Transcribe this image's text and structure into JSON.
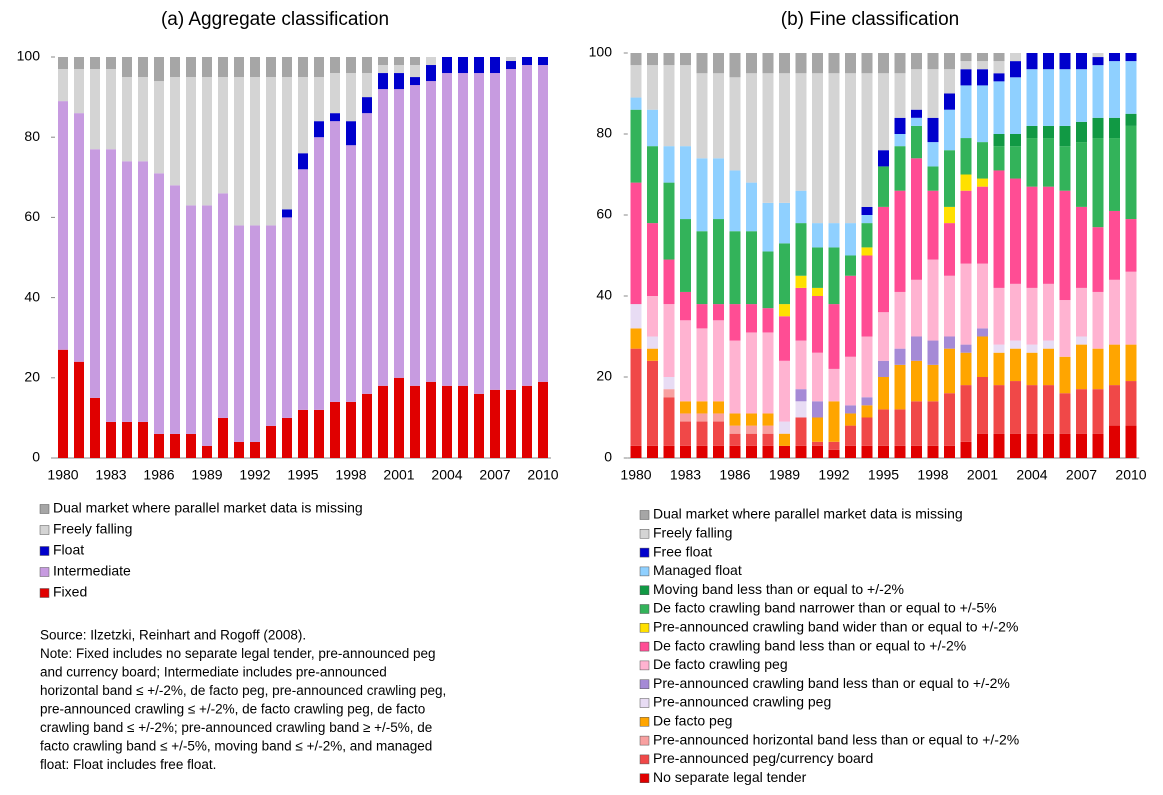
{
  "chart_data": [
    {
      "type": "stacked-bar",
      "title": "(a)  Aggregate classification",
      "categories": [
        1980,
        null,
        null,
        1983,
        null,
        null,
        1986,
        null,
        null,
        1989,
        null,
        null,
        1992,
        null,
        null,
        1995,
        null,
        null,
        1998,
        null,
        null,
        2001,
        null,
        null,
        2004,
        null,
        null,
        2007,
        null,
        null,
        2010
      ],
      "ylim": [
        0,
        100
      ],
      "yticks": [
        0,
        20,
        40,
        60,
        80,
        100
      ],
      "series": [
        {
          "name": "Fixed",
          "color": "#e00000",
          "values": [
            27,
            24,
            15,
            9,
            9,
            9,
            6,
            6,
            6,
            3,
            10,
            4,
            4,
            8,
            10,
            12,
            12,
            14,
            14,
            16,
            18,
            20,
            18,
            19,
            18,
            18,
            16,
            17,
            17,
            18,
            19
          ]
        },
        {
          "name": "Intermediate",
          "color": "#c79be0",
          "values": [
            62,
            62,
            62,
            68,
            65,
            65,
            65,
            62,
            57,
            60,
            56,
            54,
            54,
            50,
            50,
            60,
            68,
            70,
            64,
            70,
            74,
            72,
            75,
            75,
            78,
            78,
            80,
            79,
            80,
            80,
            79
          ]
        },
        {
          "name": "Float",
          "color": "#0000cc",
          "values": [
            0,
            0,
            0,
            0,
            0,
            0,
            0,
            0,
            0,
            0,
            0,
            0,
            0,
            0,
            2,
            4,
            4,
            2,
            6,
            4,
            4,
            4,
            2,
            4,
            4,
            4,
            4,
            4,
            2,
            2,
            2
          ]
        },
        {
          "name": "Freely falling",
          "color": "#d4d4d4",
          "values": [
            8,
            11,
            20,
            20,
            21,
            21,
            23,
            27,
            32,
            32,
            29,
            37,
            37,
            37,
            33,
            19,
            11,
            10,
            12,
            6,
            2,
            2,
            3,
            2,
            0,
            0,
            0,
            0,
            1,
            0,
            0
          ]
        },
        {
          "name": "Dual market where parallel market data is missing",
          "color": "#a6a6a6",
          "values": [
            3,
            3,
            3,
            3,
            5,
            5,
            6,
            5,
            5,
            5,
            5,
            5,
            5,
            5,
            5,
            5,
            5,
            4,
            4,
            4,
            2,
            2,
            2,
            0,
            0,
            0,
            0,
            0,
            0,
            0,
            0
          ]
        }
      ]
    },
    {
      "type": "stacked-bar",
      "title": "(b)  Fine classification",
      "categories": [
        1980,
        null,
        null,
        1983,
        null,
        null,
        1986,
        null,
        null,
        1989,
        null,
        null,
        1992,
        null,
        null,
        1995,
        null,
        null,
        1998,
        null,
        null,
        2001,
        null,
        null,
        2004,
        null,
        null,
        2007,
        null,
        null,
        2010
      ],
      "ylim": [
        0,
        100
      ],
      "yticks": [
        0,
        20,
        40,
        60,
        80,
        100
      ],
      "series": [
        {
          "name": "No separate legal tender",
          "color": "#e00000",
          "values": [
            3,
            3,
            3,
            3,
            3,
            3,
            3,
            3,
            3,
            3,
            3,
            3,
            2,
            3,
            3,
            3,
            3,
            3,
            3,
            3,
            4,
            6,
            6,
            6,
            6,
            6,
            6,
            6,
            6,
            8,
            8
          ]
        },
        {
          "name": "Pre-announced peg/currency board",
          "color": "#f04848",
          "values": [
            24,
            21,
            12,
            6,
            6,
            6,
            3,
            3,
            3,
            0,
            7,
            1,
            2,
            5,
            7,
            9,
            9,
            11,
            11,
            13,
            14,
            14,
            12,
            13,
            12,
            12,
            10,
            11,
            11,
            10,
            11
          ]
        },
        {
          "name": "Pre-announced horizontal  band less than or equal to +/-2%",
          "color": "#f8a0a0",
          "values": [
            0,
            0,
            2,
            2,
            2,
            2,
            2,
            2,
            2,
            0,
            0,
            0,
            0,
            0,
            0,
            0,
            0,
            0,
            0,
            0,
            0,
            0,
            0,
            0,
            0,
            0,
            0,
            0,
            0,
            0,
            0
          ]
        },
        {
          "name": "De facto peg",
          "color": "#ffa500",
          "values": [
            5,
            3,
            0,
            3,
            3,
            3,
            3,
            3,
            3,
            3,
            0,
            6,
            10,
            3,
            3,
            8,
            11,
            10,
            9,
            11,
            8,
            10,
            8,
            8,
            8,
            9,
            9,
            11,
            10,
            10,
            9
          ]
        },
        {
          "name": "Pre-announced crawling peg",
          "color": "#e8dcf4",
          "values": [
            6,
            3,
            3,
            0,
            0,
            0,
            0,
            0,
            0,
            3,
            4,
            0,
            0,
            0,
            0,
            0,
            0,
            0,
            0,
            0,
            0,
            0,
            2,
            2,
            2,
            2,
            0,
            2,
            0,
            0,
            0
          ]
        },
        {
          "name": "Pre-announced crawling band less than or equal to +/-2%",
          "color": "#a58ad6",
          "values": [
            0,
            0,
            0,
            0,
            0,
            0,
            0,
            0,
            0,
            0,
            3,
            4,
            0,
            2,
            2,
            4,
            4,
            6,
            6,
            3,
            2,
            2,
            0,
            0,
            0,
            0,
            0,
            0,
            0,
            0,
            0
          ]
        },
        {
          "name": "De facto crawling peg",
          "color": "#ffb3d1",
          "values": [
            0,
            10,
            18,
            20,
            18,
            20,
            18,
            20,
            20,
            15,
            12,
            12,
            8,
            12,
            15,
            12,
            14,
            14,
            20,
            15,
            20,
            16,
            14,
            14,
            14,
            14,
            14,
            12,
            14,
            16,
            18
          ]
        },
        {
          "name": "De facto crawling band less than or equal to +/-2%",
          "color": "#ff4d94",
          "values": [
            30,
            18,
            11,
            7,
            6,
            4,
            9,
            7,
            6,
            11,
            13,
            14,
            16,
            20,
            20,
            26,
            25,
            30,
            17,
            13,
            18,
            19,
            29,
            26,
            25,
            24,
            27,
            20,
            16,
            17,
            13
          ]
        },
        {
          "name": "Pre-announced crawling band wider than or equal to +/-2%",
          "color": "#ffe000",
          "values": [
            0,
            0,
            0,
            0,
            0,
            0,
            0,
            0,
            0,
            3,
            3,
            2,
            0,
            0,
            2,
            0,
            0,
            0,
            0,
            4,
            4,
            2,
            0,
            0,
            0,
            0,
            0,
            0,
            0,
            0,
            0
          ]
        },
        {
          "name": "De facto crawling band  narrower than or equal to +/-5%",
          "color": "#33b35a",
          "values": [
            18,
            19,
            19,
            18,
            18,
            21,
            18,
            18,
            14,
            15,
            13,
            10,
            14,
            5,
            6,
            10,
            11,
            8,
            6,
            14,
            9,
            9,
            6,
            8,
            12,
            12,
            11,
            16,
            22,
            18,
            23
          ]
        },
        {
          "name": "Moving band less than or equal to +/-2%",
          "color": "#119944",
          "values": [
            0,
            0,
            0,
            0,
            0,
            0,
            0,
            0,
            0,
            0,
            0,
            0,
            0,
            0,
            0,
            0,
            0,
            0,
            0,
            0,
            0,
            0,
            3,
            3,
            3,
            3,
            5,
            5,
            5,
            5,
            3
          ]
        },
        {
          "name": "Managed float",
          "color": "#8fd0ff",
          "values": [
            3,
            9,
            9,
            18,
            18,
            15,
            15,
            12,
            12,
            10,
            8,
            6,
            6,
            8,
            2,
            0,
            3,
            2,
            6,
            10,
            13,
            14,
            13,
            14,
            14,
            14,
            14,
            13,
            13,
            14,
            13
          ]
        },
        {
          "name": "Free float",
          "color": "#0000cc",
          "values": [
            0,
            0,
            0,
            0,
            0,
            0,
            0,
            0,
            0,
            0,
            0,
            0,
            0,
            0,
            2,
            4,
            4,
            2,
            6,
            4,
            4,
            4,
            2,
            4,
            4,
            4,
            4,
            4,
            2,
            2,
            2
          ]
        },
        {
          "name": "Freely falling",
          "color": "#d4d4d4",
          "values": [
            8,
            11,
            20,
            20,
            21,
            21,
            23,
            27,
            32,
            32,
            29,
            37,
            37,
            37,
            33,
            19,
            11,
            10,
            12,
            6,
            2,
            2,
            3,
            2,
            0,
            0,
            0,
            0,
            1,
            0,
            0
          ]
        },
        {
          "name": "Dual market where parallel market data is missing",
          "color": "#a6a6a6",
          "values": [
            3,
            3,
            3,
            3,
            5,
            5,
            6,
            5,
            5,
            5,
            5,
            5,
            5,
            5,
            5,
            5,
            5,
            4,
            4,
            4,
            2,
            2,
            2,
            0,
            0,
            0,
            0,
            0,
            0,
            0,
            0
          ]
        }
      ]
    }
  ],
  "footnote": [
    "Source: Ilzetzki, Reinhart and Rogoff (2008).",
    "Note: Fixed includes no separate legal tender, pre-announced peg",
    "and currency board; Intermediate includes pre-announced",
    "horizontal band ≤ +/-2%, de facto peg, pre-announced crawling peg,",
    "pre-announced crawling ≤ +/-2%, de facto crawling peg, de facto",
    "crawling band ≤ +/-2%; pre-announced crawling band ≥ +/-5%, de",
    "facto crawling band ≤ +/-5%, moving band ≤ +/-2%, and managed",
    "float: Float includes free float."
  ]
}
